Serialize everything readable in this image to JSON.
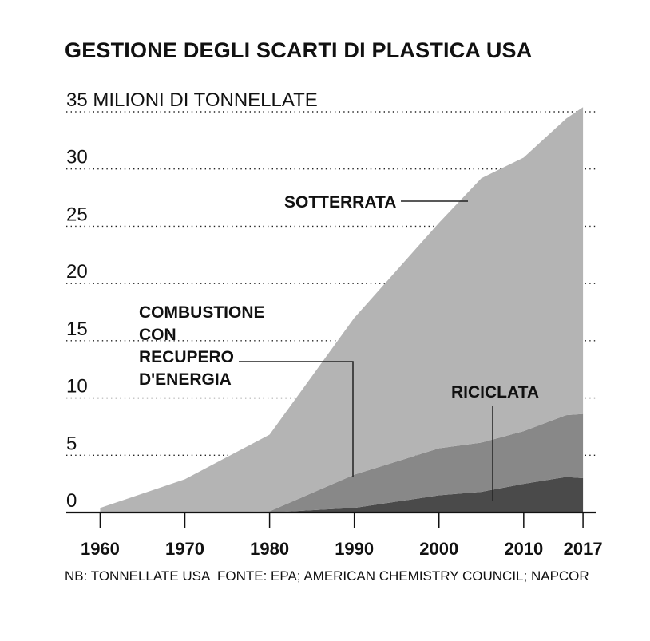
{
  "chart_data": {
    "type": "area",
    "stacked": true,
    "title": "GESTIONE DEGLI SCARTI DI PLASTICA USA",
    "ylabel": "35 MILIONI DI TONNELLATE",
    "ylim": [
      0,
      35
    ],
    "yticks": [
      {
        "value": 35,
        "label": "35 MILIONI DI TONNELLATE"
      },
      {
        "value": 30,
        "label": "30"
      },
      {
        "value": 25,
        "label": "25"
      },
      {
        "value": 20,
        "label": "20"
      },
      {
        "value": 15,
        "label": "15"
      },
      {
        "value": 10,
        "label": "10"
      },
      {
        "value": 5,
        "label": "5"
      },
      {
        "value": 0,
        "label": "0"
      }
    ],
    "xlim": [
      1956,
      2018.5
    ],
    "xticks": [
      {
        "value": 1960,
        "label": "1960"
      },
      {
        "value": 1970,
        "label": "1970"
      },
      {
        "value": 1980,
        "label": "1980"
      },
      {
        "value": 1990,
        "label": "1990"
      },
      {
        "value": 2000,
        "label": "2000"
      },
      {
        "value": 2010,
        "label": "2010"
      },
      {
        "value": 2017,
        "label": "2017"
      }
    ],
    "grid": "dotted horizontal",
    "x": [
      1960,
      1970,
      1980,
      1990,
      2000,
      2005,
      2010,
      2015,
      2017
    ],
    "series": [
      {
        "name": "RICICLATA",
        "values": [
          0.0,
          0.0,
          0.0,
          0.4,
          1.5,
          1.8,
          2.5,
          3.1,
          3.0
        ],
        "color": "#4a4a4a"
      },
      {
        "name": "COMBUSTIONE CON RECUPERO D'ENERGIA",
        "values": [
          0.0,
          0.0,
          0.1,
          2.9,
          4.1,
          4.3,
          4.6,
          5.4,
          5.6
        ],
        "color": "#888888"
      },
      {
        "name": "SOTTERRATA",
        "values": [
          0.4,
          2.9,
          6.7,
          13.7,
          19.7,
          23.1,
          23.9,
          25.9,
          26.8
        ],
        "color": "#b4b4b4"
      }
    ],
    "annotations": {
      "riciclata": "RICICLATA",
      "combustione": [
        "COMBUSTIONE",
        "CON",
        "RECUPERO",
        "D'ENERGIA"
      ],
      "sotterrata": "SOTTERRATA"
    },
    "note": "NB: TONNELLATE USA",
    "source": "FONTE: EPA; AMERICAN CHEMISTRY COUNCIL; NAPCOR"
  }
}
